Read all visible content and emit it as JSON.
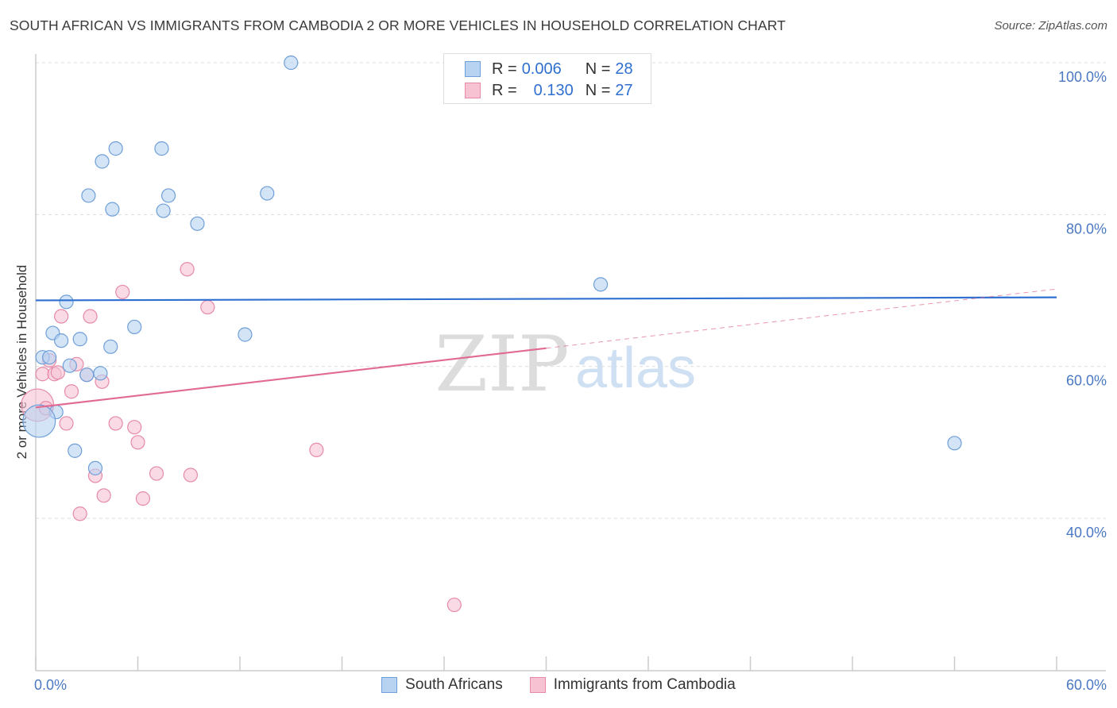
{
  "header": {
    "title": "SOUTH AFRICAN VS IMMIGRANTS FROM CAMBODIA 2 OR MORE VEHICLES IN HOUSEHOLD CORRELATION CHART",
    "source": "Source: ZipAtlas.com"
  },
  "watermark": {
    "zip": "ZIP",
    "atlas": "atlas"
  },
  "legend": {
    "series1": {
      "r_label": "R =",
      "r_value": "0.006",
      "n_label": "N =",
      "n_value": "28"
    },
    "series2": {
      "r_label": "R =",
      "r_value": "0.130",
      "n_label": "N =",
      "n_value": "27"
    }
  },
  "colors": {
    "blue_fill": "#b8d2f2",
    "blue_stroke": "#6e9fd8",
    "blue_line": "#2f6fd0",
    "pink_fill": "#f7c3d3",
    "pink_stroke": "#e68aa8",
    "pink_line": "#e06a92",
    "grid": "#dddddd",
    "axis": "#cccccc"
  },
  "chart_data": {
    "type": "scatter",
    "title": "SOUTH AFRICAN VS IMMIGRANTS FROM CAMBODIA 2 OR MORE VEHICLES IN HOUSEHOLD CORRELATION CHART",
    "xlabel": "",
    "ylabel": "2 or more Vehicles in Household",
    "xlim": [
      0,
      60
    ],
    "ylim": [
      22,
      103
    ],
    "x_tick_labels": [
      "0.0%",
      "60.0%"
    ],
    "y_ticks": [
      40,
      60,
      80,
      100
    ],
    "y_tick_labels": [
      "40.0%",
      "60.0%",
      "80.0%",
      "100.0%"
    ],
    "series": [
      {
        "name": "South Africans",
        "r": 0.006,
        "n": 28,
        "points": [
          {
            "x": 15.0,
            "y": 100.0,
            "s": 1
          },
          {
            "x": 4.7,
            "y": 88.7,
            "s": 1
          },
          {
            "x": 7.4,
            "y": 88.7,
            "s": 1
          },
          {
            "x": 3.9,
            "y": 87.0,
            "s": 1
          },
          {
            "x": 3.1,
            "y": 82.5,
            "s": 1
          },
          {
            "x": 7.8,
            "y": 82.5,
            "s": 1
          },
          {
            "x": 13.6,
            "y": 82.8,
            "s": 1
          },
          {
            "x": 4.5,
            "y": 80.7,
            "s": 1
          },
          {
            "x": 7.5,
            "y": 80.5,
            "s": 1
          },
          {
            "x": 9.5,
            "y": 78.8,
            "s": 1
          },
          {
            "x": 33.2,
            "y": 70.8,
            "s": 1
          },
          {
            "x": 1.8,
            "y": 68.5,
            "s": 1
          },
          {
            "x": 5.8,
            "y": 65.2,
            "s": 1
          },
          {
            "x": 1.0,
            "y": 64.4,
            "s": 1
          },
          {
            "x": 12.3,
            "y": 64.2,
            "s": 1
          },
          {
            "x": 1.5,
            "y": 63.4,
            "s": 1
          },
          {
            "x": 2.6,
            "y": 63.6,
            "s": 1
          },
          {
            "x": 4.4,
            "y": 62.6,
            "s": 1
          },
          {
            "x": 0.4,
            "y": 61.2,
            "s": 1
          },
          {
            "x": 0.8,
            "y": 61.2,
            "s": 1
          },
          {
            "x": 2.0,
            "y": 60.1,
            "s": 1
          },
          {
            "x": 3.0,
            "y": 58.9,
            "s": 1
          },
          {
            "x": 3.8,
            "y": 59.1,
            "s": 1
          },
          {
            "x": 1.2,
            "y": 54.0,
            "s": 1
          },
          {
            "x": 0.2,
            "y": 52.8,
            "s": 2.4
          },
          {
            "x": 54.0,
            "y": 49.9,
            "s": 1
          },
          {
            "x": 2.3,
            "y": 48.9,
            "s": 1
          },
          {
            "x": 3.5,
            "y": 46.6,
            "s": 1
          }
        ],
        "trend": {
          "x0": 0,
          "y0": 68.7,
          "x1": 60,
          "y1": 69.1
        }
      },
      {
        "name": "Immigrants from Cambodia",
        "r": 0.13,
        "n": 27,
        "points": [
          {
            "x": 8.9,
            "y": 72.8,
            "s": 1
          },
          {
            "x": 5.1,
            "y": 69.8,
            "s": 1
          },
          {
            "x": 10.1,
            "y": 67.8,
            "s": 1
          },
          {
            "x": 1.5,
            "y": 66.6,
            "s": 1
          },
          {
            "x": 3.2,
            "y": 66.6,
            "s": 1
          },
          {
            "x": 0.8,
            "y": 60.8,
            "s": 1
          },
          {
            "x": 2.4,
            "y": 60.3,
            "s": 1
          },
          {
            "x": 0.4,
            "y": 59.0,
            "s": 1
          },
          {
            "x": 1.1,
            "y": 59.0,
            "s": 1
          },
          {
            "x": 1.3,
            "y": 59.2,
            "s": 1
          },
          {
            "x": 3.0,
            "y": 58.9,
            "s": 1
          },
          {
            "x": 3.9,
            "y": 58.0,
            "s": 1
          },
          {
            "x": 2.1,
            "y": 56.7,
            "s": 1
          },
          {
            "x": 0.1,
            "y": 54.9,
            "s": 2.4
          },
          {
            "x": 1.8,
            "y": 52.5,
            "s": 1
          },
          {
            "x": 4.7,
            "y": 52.5,
            "s": 1
          },
          {
            "x": 5.8,
            "y": 52.0,
            "s": 1
          },
          {
            "x": 6.0,
            "y": 50.0,
            "s": 1
          },
          {
            "x": 16.5,
            "y": 49.0,
            "s": 1
          },
          {
            "x": 7.1,
            "y": 45.9,
            "s": 1
          },
          {
            "x": 9.1,
            "y": 45.7,
            "s": 1
          },
          {
            "x": 3.5,
            "y": 45.6,
            "s": 1
          },
          {
            "x": 4.0,
            "y": 43.0,
            "s": 1
          },
          {
            "x": 6.3,
            "y": 42.6,
            "s": 1
          },
          {
            "x": 2.6,
            "y": 40.6,
            "s": 1
          },
          {
            "x": 24.6,
            "y": 28.6,
            "s": 1
          },
          {
            "x": 0.6,
            "y": 54.5,
            "s": 1
          }
        ],
        "trend": {
          "x0": 0,
          "y0": 54.6,
          "x1": 30,
          "y1": 62.4,
          "dash_x1": 60,
          "dash_y1": 70.2
        }
      }
    ]
  },
  "bottom_legend": {
    "series1_label": "South Africans",
    "series2_label": "Immigrants from Cambodia"
  }
}
